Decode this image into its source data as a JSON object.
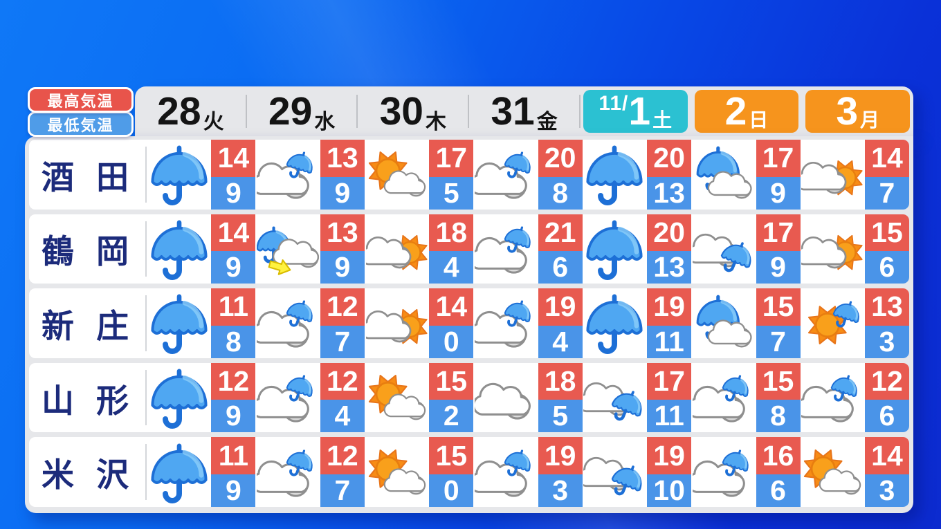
{
  "colors": {
    "background_top": "#0F78F7",
    "background_bottom": "#0C2BCF",
    "panel": "#E6E7EA",
    "row_card": "#FFFFFF",
    "high_temp_box": "#E85A50",
    "low_temp_box": "#4A94E8",
    "saturday_badge": "#2BC1D2",
    "sunday_monday_badge": "#F6941D",
    "city_text": "#1C2B7B",
    "date_text": "#141414",
    "legend_high": "#E8544B",
    "legend_low": "#4F9CE8"
  },
  "legend": {
    "high_label": "最高気温",
    "low_label": "最低気温"
  },
  "chart_data": {
    "type": "table",
    "days": [
      {
        "num": "28",
        "weekday": "火",
        "style": "plain"
      },
      {
        "num": "29",
        "weekday": "水",
        "style": "plain"
      },
      {
        "num": "30",
        "weekday": "木",
        "style": "plain"
      },
      {
        "num": "31",
        "weekday": "金",
        "style": "plain"
      },
      {
        "prefix": "11/",
        "num": "1",
        "weekday": "土",
        "style": "saturday"
      },
      {
        "num": "2",
        "weekday": "日",
        "style": "holiday"
      },
      {
        "num": "3",
        "weekday": "月",
        "style": "holiday"
      }
    ],
    "rows": [
      {
        "city": "酒田",
        "forecast": [
          {
            "icon": "rain",
            "high": 14,
            "low": 9
          },
          {
            "icon": "cloud-rain",
            "high": 13,
            "low": 9
          },
          {
            "icon": "sun-cloud",
            "high": 17,
            "low": 5
          },
          {
            "icon": "cloud-rain",
            "high": 20,
            "low": 8
          },
          {
            "icon": "rain",
            "high": 20,
            "low": 13
          },
          {
            "icon": "rain-cloud",
            "high": 17,
            "low": 9
          },
          {
            "icon": "cloud-sun",
            "high": 14,
            "low": 7
          }
        ]
      },
      {
        "city": "鶴岡",
        "forecast": [
          {
            "icon": "rain",
            "high": 14,
            "low": 9
          },
          {
            "icon": "rain-arrow-cloud",
            "high": 13,
            "low": 9
          },
          {
            "icon": "cloud-sun",
            "high": 18,
            "low": 4
          },
          {
            "icon": "cloud-rain",
            "high": 21,
            "low": 6
          },
          {
            "icon": "rain",
            "high": 20,
            "low": 13
          },
          {
            "icon": "cloud-rain-right",
            "high": 17,
            "low": 9
          },
          {
            "icon": "cloud-sun",
            "high": 15,
            "low": 6
          }
        ]
      },
      {
        "city": "新庄",
        "forecast": [
          {
            "icon": "rain",
            "high": 11,
            "low": 8
          },
          {
            "icon": "cloud-rain",
            "high": 12,
            "low": 7
          },
          {
            "icon": "cloud-sun",
            "high": 14,
            "low": 0
          },
          {
            "icon": "cloud-rain",
            "high": 19,
            "low": 4
          },
          {
            "icon": "rain",
            "high": 19,
            "low": 11
          },
          {
            "icon": "rain-cloud",
            "high": 15,
            "low": 7
          },
          {
            "icon": "sun-rain",
            "high": 13,
            "low": 3
          }
        ]
      },
      {
        "city": "山形",
        "forecast": [
          {
            "icon": "rain",
            "high": 12,
            "low": 9
          },
          {
            "icon": "cloud-rain",
            "high": 12,
            "low": 4
          },
          {
            "icon": "sun-cloud",
            "high": 15,
            "low": 2
          },
          {
            "icon": "cloud",
            "high": 18,
            "low": 5
          },
          {
            "icon": "cloud-rain-right",
            "high": 17,
            "low": 11
          },
          {
            "icon": "cloud-rain",
            "high": 15,
            "low": 8
          },
          {
            "icon": "cloud-rain",
            "high": 12,
            "low": 6
          }
        ]
      },
      {
        "city": "米沢",
        "forecast": [
          {
            "icon": "rain",
            "high": 11,
            "low": 9
          },
          {
            "icon": "cloud-rain",
            "high": 12,
            "low": 7
          },
          {
            "icon": "sun-cloud",
            "high": 15,
            "low": 0
          },
          {
            "icon": "cloud-rain",
            "high": 19,
            "low": 3
          },
          {
            "icon": "cloud-rain-right",
            "high": 19,
            "low": 10
          },
          {
            "icon": "cloud-rain",
            "high": 16,
            "low": 6
          },
          {
            "icon": "sun-cloud",
            "high": 14,
            "low": 3
          }
        ]
      }
    ]
  }
}
